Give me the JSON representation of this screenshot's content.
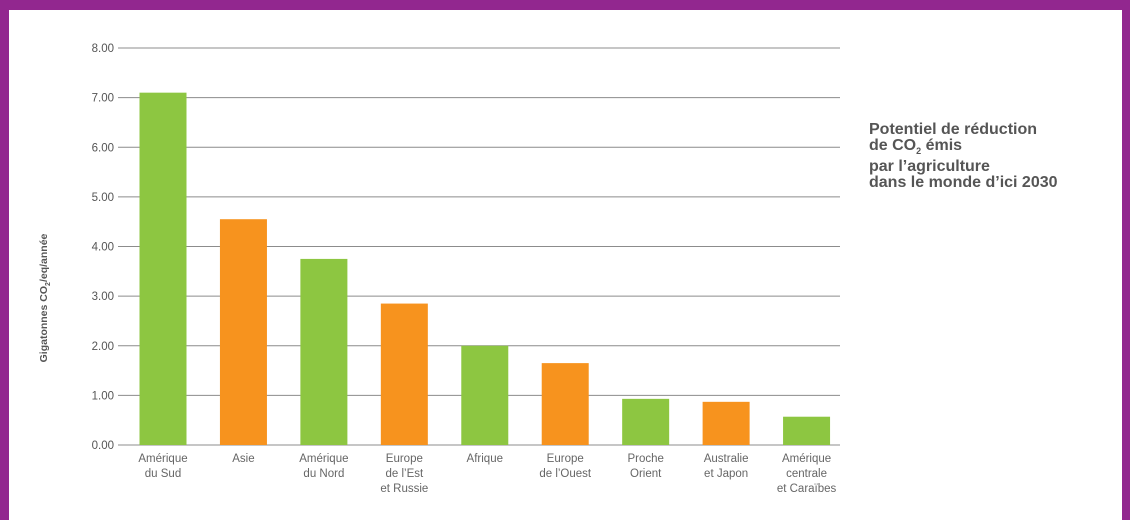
{
  "chart_data": {
    "type": "bar",
    "categories": [
      [
        "Amérique",
        "du Sud"
      ],
      [
        "Asie"
      ],
      [
        "Amérique",
        "du Nord"
      ],
      [
        "Europe",
        "de l’Est",
        "et Russie"
      ],
      [
        "Afrique"
      ],
      [
        "Europe",
        "de l’Ouest"
      ],
      [
        "Proche",
        "Orient"
      ],
      [
        "Australie",
        "et Japon"
      ],
      [
        "Amérique",
        "centrale",
        "et Caraïbes"
      ]
    ],
    "values": [
      7.1,
      4.55,
      3.75,
      2.85,
      2.0,
      1.65,
      0.93,
      0.87,
      0.57
    ],
    "bar_colors": [
      "#8dc641",
      "#f7931e",
      "#8dc641",
      "#f7931e",
      "#8dc641",
      "#f7931e",
      "#8dc641",
      "#f7931e",
      "#8dc641"
    ],
    "ylim": [
      0,
      8
    ],
    "yticks": [
      "0.00",
      "1.00",
      "2.00",
      "3.00",
      "4.00",
      "5.00",
      "6.00",
      "7.00",
      "8.00"
    ],
    "ylabel_parts": {
      "pre": "Gigatonnes CO",
      "sub": "2",
      "post": "/eq/année"
    },
    "grid": true,
    "title_lines": [
      {
        "pre": "Potentiel de réduction"
      },
      {
        "pre": "de CO",
        "sub": "2",
        "post": " émis"
      },
      {
        "pre": "par l’agriculture"
      },
      {
        "pre": "dans le monde d’ici 2030"
      }
    ]
  },
  "colors": {
    "frame": "#92278f",
    "green": "#8dc641",
    "orange": "#f7931e",
    "grid": "#8c8c8c",
    "text": "#555555"
  }
}
